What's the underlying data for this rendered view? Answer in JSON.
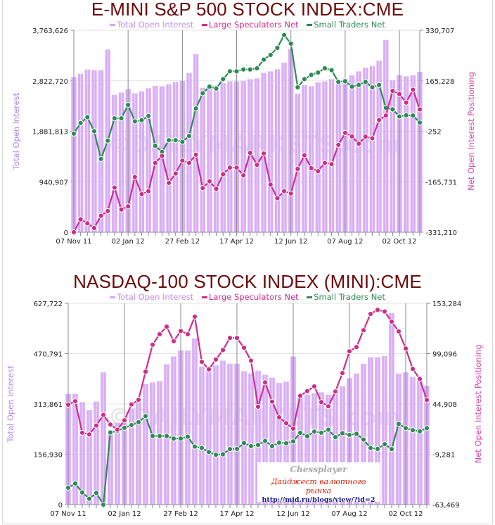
{
  "colors": {
    "bars": "#d7a6f5",
    "large": "#cc2e8a",
    "small": "#2f8a56",
    "title": "#6b0a0a",
    "left_axis": "#b088e8",
    "right_axis": "#d84aa8",
    "watermark": "#d0d0d0"
  },
  "watermark": "©DAILYMARKETS.com",
  "ad": {
    "line1": "Chessplayer",
    "line2": "Дайджест валютного рынка",
    "line3": "http://mid.ru/blogs/view/?id=2"
  },
  "chart_data": [
    {
      "type": "bar+line",
      "title": "E-MINI S&P 500 STOCK INDEX:CME",
      "legend": [
        "Total Open Interest",
        "Large Speculators Net",
        "Small Traders Net"
      ],
      "ylabel": "Total Open Interest",
      "y2label": "Net Open Interest Positioning",
      "ylim": [
        0,
        3763626
      ],
      "y2lim": [
        -331210,
        330707
      ],
      "yticks": [
        "0",
        "940,907",
        "1,881,813",
        "2,822,720",
        "3,763,626"
      ],
      "y2ticks": [
        "-331,210",
        "-165,731",
        "-252",
        "165,228",
        "330,707"
      ],
      "xticks": [
        {
          "i": 0,
          "label": "07 Nov 11"
        },
        {
          "i": 8,
          "label": "02 Jan 12"
        },
        {
          "i": 16,
          "label": "27 Feb 12"
        },
        {
          "i": 24,
          "label": "17 Apr 12"
        },
        {
          "i": 32,
          "label": "12 Jun 12"
        },
        {
          "i": 40,
          "label": "07 Aug 12"
        },
        {
          "i": 48,
          "label": "02 Oct 12"
        }
      ],
      "series": [
        {
          "name": "Total Open Interest",
          "axis": "left",
          "kind": "bar",
          "values": [
            2888000,
            2954000,
            3033000,
            3020000,
            3020000,
            3405000,
            2560000,
            2604000,
            2669000,
            2591000,
            2626000,
            2683000,
            2726000,
            2722000,
            2757000,
            2801000,
            2823000,
            2967000,
            3317000,
            2691000,
            2722000,
            2735000,
            2779000,
            2810000,
            2810000,
            2818000,
            2853000,
            2866000,
            2967000,
            2998000,
            3037000,
            3160000,
            3413000,
            2582000,
            2744000,
            2722000,
            2792000,
            2810000,
            2853000,
            2823000,
            2866000,
            2923000,
            2998000,
            3063000,
            3098000,
            3195000,
            3580000,
            2831000,
            2923000,
            2906000,
            2923000,
            2989000
          ]
        },
        {
          "name": "Small Traders Net",
          "axis": "right",
          "kind": "line",
          "values": [
            -8000,
            26700,
            45900,
            -200,
            -91100,
            -31000,
            42100,
            42100,
            86000,
            32100,
            35900,
            49800,
            -48000,
            -68000,
            -29500,
            -29500,
            -34900,
            -15600,
            74400,
            124400,
            146000,
            139800,
            170600,
            196000,
            196000,
            202200,
            202200,
            206000,
            234500,
            249900,
            273000,
            315300,
            286900,
            143700,
            170600,
            184500,
            192200,
            206000,
            199900,
            161400,
            163700,
            146000,
            151400,
            161400,
            143700,
            151400,
            76700,
            71300,
            48300,
            52100,
            51300,
            28200
          ]
        },
        {
          "name": "Large Speculators Net",
          "axis": "right",
          "kind": "line",
          "values": [
            -331200,
            -288900,
            -302000,
            -317400,
            -277300,
            -261900,
            -185000,
            -256600,
            -246500,
            -150300,
            -206500,
            -196500,
            -104200,
            -81100,
            -169600,
            -138800,
            -96500,
            -104200,
            -77200,
            -186500,
            -164200,
            -188800,
            -141100,
            -119500,
            -119500,
            -144900,
            -71100,
            -110300,
            -73400,
            -175000,
            -219600,
            -196500,
            -204200,
            -123400,
            -78800,
            -121100,
            -131100,
            -104200,
            -108000,
            -44900,
            -5600,
            -17200,
            -41000,
            -17900,
            -23300,
            36700,
            51300,
            132200,
            121400,
            93700,
            136000,
            71300
          ]
        }
      ]
    },
    {
      "type": "bar+line",
      "title": "NASDAQ-100 STOCK INDEX (MINI):CME",
      "legend": [
        "Total Open Interest",
        "Large Speculators Net",
        "Small Traders Net"
      ],
      "ylabel": "Total Open Interest",
      "y2label": "Net Open Interest Positioning",
      "ylim": [
        0,
        627722
      ],
      "y2lim": [
        -63469,
        153284
      ],
      "yticks": [
        "0",
        "156,930",
        "313,861",
        "470,791",
        "627,722"
      ],
      "y2ticks": [
        "-63,469",
        "-9,281",
        "44,908",
        "99,096",
        "153,284"
      ],
      "xticks": [
        {
          "i": 0,
          "label": "07 Nov 11"
        },
        {
          "i": 8,
          "label": "02 Jan 12"
        },
        {
          "i": 16,
          "label": "27 Feb 12"
        },
        {
          "i": 24,
          "label": "17 Apr 12"
        },
        {
          "i": 32,
          "label": "12 Jun 12"
        },
        {
          "i": 40,
          "label": "07 Aug 12"
        },
        {
          "i": 48,
          "label": "02 Oct 12"
        }
      ],
      "series": [
        {
          "name": "Total Open Interest",
          "axis": "left",
          "kind": "bar",
          "values": [
            345200,
            345200,
            319700,
            294900,
            321200,
            412400,
            233600,
            255500,
            255500,
            299300,
            328500,
            375900,
            381000,
            385400,
            437900,
            462000,
            480300,
            480300,
            518200,
            430600,
            423300,
            434300,
            448900,
            439400,
            439400,
            416000,
            408700,
            417500,
            405100,
            395600,
            379500,
            383200,
            462000,
            339400,
            343100,
            346700,
            350400,
            343100,
            354000,
            368600,
            394100,
            408700,
            439400,
            459800,
            459800,
            463500,
            597000,
            408700,
            412400,
            397800,
            394100,
            370800
          ]
        },
        {
          "name": "Small Traders Net",
          "axis": "right",
          "kind": "line",
          "values": [
            -45300,
            -40800,
            -50400,
            -57200,
            -50900,
            -63500,
            14200,
            15900,
            19200,
            22200,
            25300,
            31800,
            10400,
            10400,
            10400,
            7600,
            7600,
            9600,
            -1000,
            -2500,
            -6800,
            -9800,
            -9300,
            -3700,
            -3500,
            2800,
            -500,
            800,
            5100,
            -500,
            3300,
            2600,
            4600,
            13900,
            10100,
            15200,
            13900,
            17200,
            9100,
            13400,
            11600,
            12700,
            6600,
            -2500,
            -3500,
            1600,
            -3700,
            23500,
            18900,
            16700,
            15400,
            18900
          ]
        },
        {
          "name": "Large Speculators Net",
          "axis": "right",
          "kind": "line",
          "values": [
            44150,
            47900,
            13900,
            12100,
            21700,
            33100,
            22700,
            17200,
            27300,
            44400,
            49400,
            79700,
            108700,
            120000,
            128100,
            112500,
            123500,
            120000,
            138900,
            90300,
            82200,
            92800,
            102900,
            116000,
            116000,
            105400,
            91500,
            41900,
            68100,
            47400,
            30500,
            24200,
            18400,
            53700,
            58800,
            63800,
            46900,
            42400,
            58300,
            78200,
            101600,
            106200,
            124300,
            141900,
            146200,
            144500,
            133600,
            123000,
            104600,
            82700,
            71900,
            49200
          ]
        }
      ]
    }
  ]
}
